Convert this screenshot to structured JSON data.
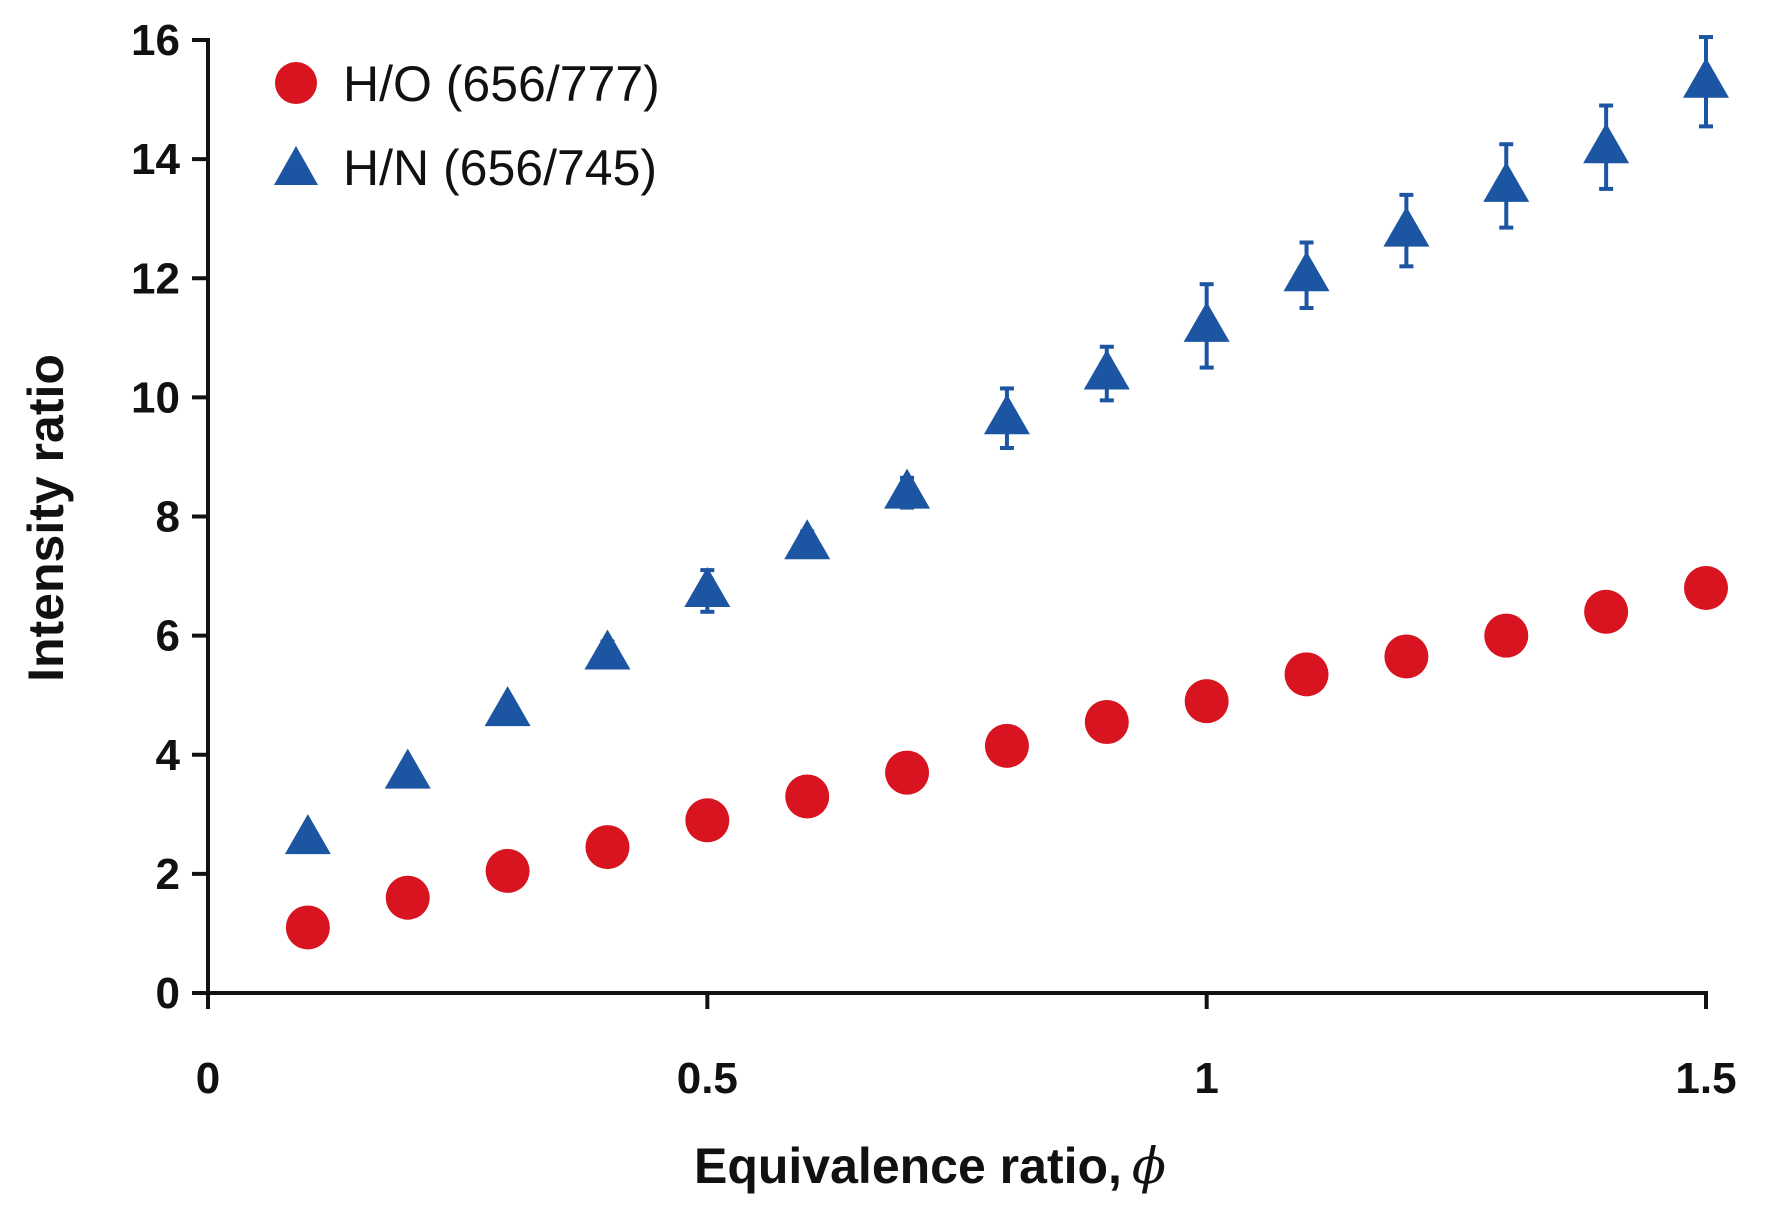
{
  "chart_data": {
    "type": "scatter",
    "title": "",
    "xlabel": "Equivalence ratio,",
    "xlabel_symbol": "ϕ",
    "ylabel": "Intensity ratio",
    "xlim": [
      0,
      1.5
    ],
    "ylim": [
      0,
      16
    ],
    "x_ticks": [
      "0",
      "0.5",
      "1",
      "1.5"
    ],
    "y_ticks": [
      "0",
      "2",
      "4",
      "6",
      "8",
      "10",
      "12",
      "14",
      "16"
    ],
    "legend_position": "top-left",
    "grid": false,
    "series": [
      {
        "name": "H/O (656/777)",
        "marker": "circle",
        "color": "#d7141f",
        "x": [
          0.1,
          0.2,
          0.3,
          0.4,
          0.5,
          0.6,
          0.7,
          0.8,
          0.9,
          1.0,
          1.1,
          1.2,
          1.3,
          1.4,
          1.5
        ],
        "y": [
          1.1,
          1.6,
          2.05,
          2.45,
          2.9,
          3.3,
          3.7,
          4.15,
          4.55,
          4.9,
          5.35,
          5.65,
          6.0,
          6.4,
          6.8
        ],
        "error": [
          0,
          0,
          0,
          0,
          0,
          0,
          0,
          0,
          0,
          0,
          0,
          0,
          0,
          0,
          0
        ]
      },
      {
        "name": "H/N (656/745)",
        "marker": "triangle",
        "color": "#1c55a2",
        "x": [
          0.1,
          0.2,
          0.3,
          0.4,
          0.5,
          0.6,
          0.7,
          0.8,
          0.9,
          1.0,
          1.1,
          1.2,
          1.3,
          1.4,
          1.5
        ],
        "y": [
          2.6,
          3.7,
          4.75,
          5.7,
          6.75,
          7.55,
          8.4,
          9.65,
          10.4,
          11.2,
          12.05,
          12.8,
          13.55,
          14.2,
          15.3
        ],
        "error": [
          0,
          0.1,
          0.15,
          0.2,
          0.35,
          0.2,
          0.25,
          0.5,
          0.45,
          0.7,
          0.55,
          0.6,
          0.7,
          0.7,
          0.75
        ]
      }
    ]
  }
}
